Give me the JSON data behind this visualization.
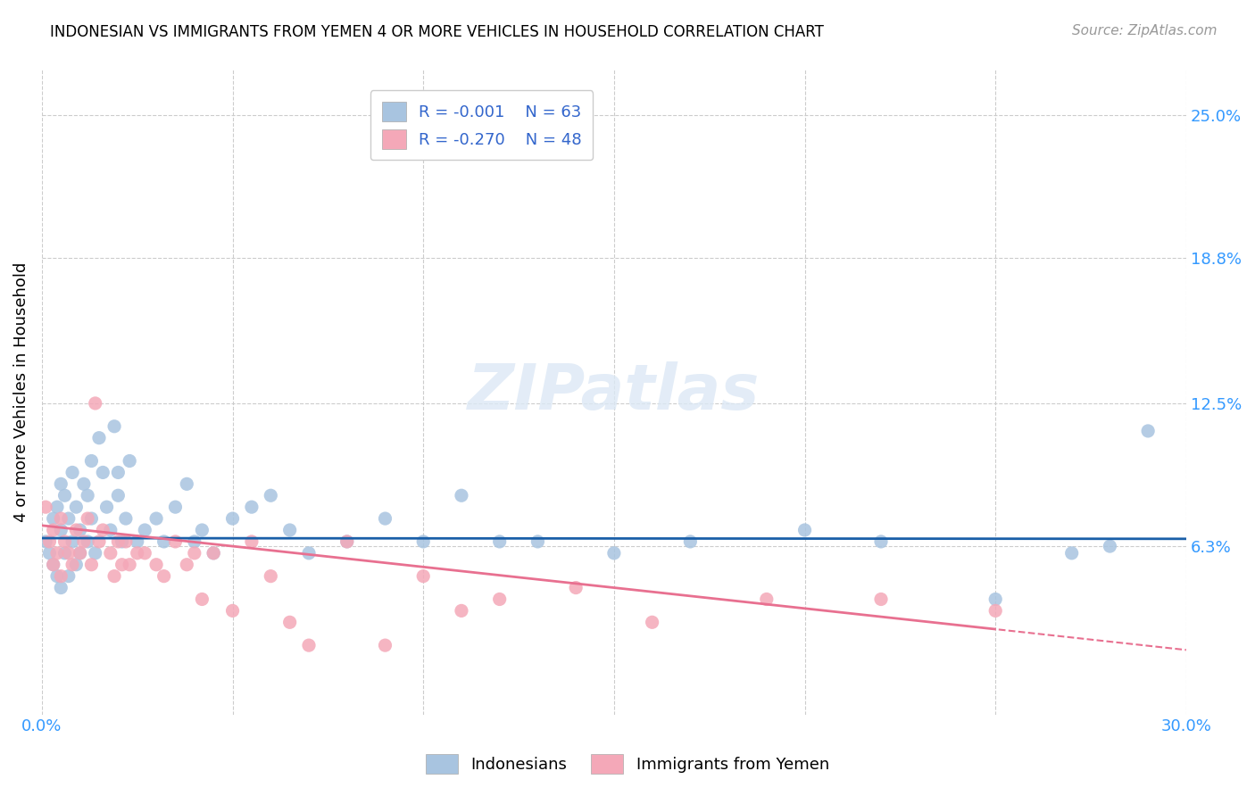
{
  "title": "INDONESIAN VS IMMIGRANTS FROM YEMEN 4 OR MORE VEHICLES IN HOUSEHOLD CORRELATION CHART",
  "source": "Source: ZipAtlas.com",
  "ylabel": "4 or more Vehicles in Household",
  "ytick_labels": [
    "25.0%",
    "18.8%",
    "12.5%",
    "6.3%"
  ],
  "ytick_values": [
    0.25,
    0.188,
    0.125,
    0.063
  ],
  "xlim": [
    0.0,
    0.3
  ],
  "ylim": [
    -0.01,
    0.27
  ],
  "legend_blue_r": "R = -0.001",
  "legend_blue_n": "N = 63",
  "legend_pink_r": "R = -0.270",
  "legend_pink_n": "N = 48",
  "blue_color": "#a8c4e0",
  "pink_color": "#f4a8b8",
  "line_blue": "#1a5fa8",
  "line_pink": "#e87090",
  "indonesian_x": [
    0.001,
    0.002,
    0.003,
    0.003,
    0.004,
    0.004,
    0.005,
    0.005,
    0.005,
    0.006,
    0.006,
    0.007,
    0.007,
    0.008,
    0.008,
    0.009,
    0.009,
    0.01,
    0.01,
    0.011,
    0.012,
    0.012,
    0.013,
    0.013,
    0.014,
    0.015,
    0.016,
    0.017,
    0.018,
    0.019,
    0.02,
    0.02,
    0.021,
    0.022,
    0.023,
    0.025,
    0.027,
    0.03,
    0.032,
    0.035,
    0.038,
    0.04,
    0.042,
    0.045,
    0.05,
    0.055,
    0.06,
    0.065,
    0.07,
    0.08,
    0.09,
    0.1,
    0.11,
    0.12,
    0.13,
    0.15,
    0.17,
    0.2,
    0.22,
    0.25,
    0.27,
    0.28,
    0.29
  ],
  "indonesian_y": [
    0.065,
    0.06,
    0.075,
    0.055,
    0.08,
    0.05,
    0.09,
    0.07,
    0.045,
    0.085,
    0.06,
    0.075,
    0.05,
    0.095,
    0.065,
    0.055,
    0.08,
    0.07,
    0.06,
    0.09,
    0.085,
    0.065,
    0.075,
    0.1,
    0.06,
    0.11,
    0.095,
    0.08,
    0.07,
    0.115,
    0.085,
    0.095,
    0.065,
    0.075,
    0.1,
    0.065,
    0.07,
    0.075,
    0.065,
    0.08,
    0.09,
    0.065,
    0.07,
    0.06,
    0.075,
    0.08,
    0.085,
    0.07,
    0.06,
    0.065,
    0.075,
    0.065,
    0.085,
    0.065,
    0.065,
    0.06,
    0.065,
    0.07,
    0.065,
    0.04,
    0.06,
    0.063,
    0.113
  ],
  "yemeni_x": [
    0.001,
    0.002,
    0.003,
    0.003,
    0.004,
    0.005,
    0.005,
    0.006,
    0.007,
    0.008,
    0.009,
    0.01,
    0.011,
    0.012,
    0.013,
    0.014,
    0.015,
    0.016,
    0.018,
    0.019,
    0.02,
    0.021,
    0.022,
    0.023,
    0.025,
    0.027,
    0.03,
    0.032,
    0.035,
    0.038,
    0.04,
    0.042,
    0.045,
    0.05,
    0.055,
    0.06,
    0.065,
    0.07,
    0.08,
    0.09,
    0.1,
    0.11,
    0.12,
    0.14,
    0.16,
    0.19,
    0.22,
    0.25
  ],
  "yemeni_y": [
    0.08,
    0.065,
    0.07,
    0.055,
    0.06,
    0.05,
    0.075,
    0.065,
    0.06,
    0.055,
    0.07,
    0.06,
    0.065,
    0.075,
    0.055,
    0.125,
    0.065,
    0.07,
    0.06,
    0.05,
    0.065,
    0.055,
    0.065,
    0.055,
    0.06,
    0.06,
    0.055,
    0.05,
    0.065,
    0.055,
    0.06,
    0.04,
    0.06,
    0.035,
    0.065,
    0.05,
    0.03,
    0.02,
    0.065,
    0.02,
    0.05,
    0.035,
    0.04,
    0.045,
    0.03,
    0.04,
    0.04,
    0.035
  ],
  "blue_line_y_intercept": 0.0665,
  "blue_line_slope": -0.001,
  "pink_line_y_intercept": 0.072,
  "pink_line_slope": -0.18
}
